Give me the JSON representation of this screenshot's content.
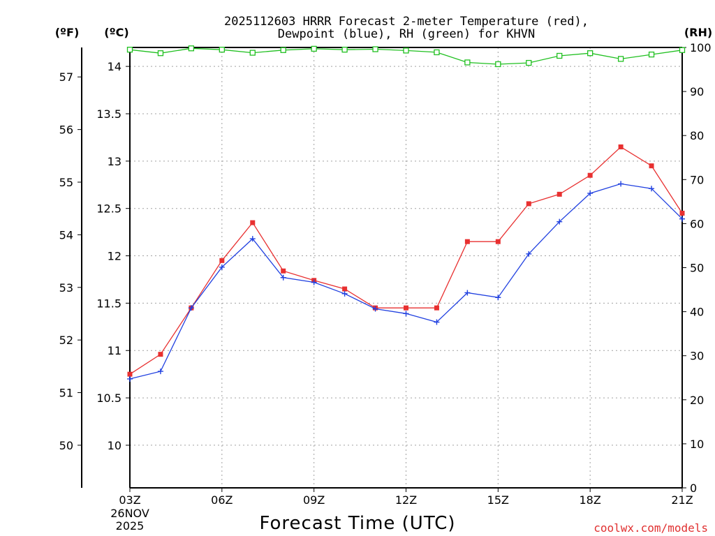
{
  "chart_data": {
    "type": "line",
    "title_line1": "2025112603 HRRR Forecast 2-meter Temperature (red),",
    "title_line2": "Dewpoint (blue), RH (green) for KHVN",
    "xlabel": "Forecast Time (UTC)",
    "credit": "coolwx.com/models",
    "unit_left_f": "(ºF)",
    "unit_left_c": "(ºC)",
    "unit_right": "(RH)",
    "date_label": [
      "26NOV",
      "2025"
    ],
    "x": [
      3,
      4,
      5,
      6,
      7,
      8,
      9,
      10,
      11,
      12,
      13,
      14,
      15,
      16,
      17,
      18,
      19,
      20,
      21
    ],
    "x_ticks": [
      {
        "x": 3,
        "label": "03Z"
      },
      {
        "x": 6,
        "label": "06Z"
      },
      {
        "x": 9,
        "label": "09Z"
      },
      {
        "x": 12,
        "label": "12Z"
      },
      {
        "x": 15,
        "label": "15Z"
      },
      {
        "x": 18,
        "label": "18Z"
      },
      {
        "x": 21,
        "label": "21Z"
      }
    ],
    "xlim": [
      3,
      21
    ],
    "ylim_c": [
      9.55,
      14.2
    ],
    "yticks_c": [
      10,
      10.5,
      11,
      11.5,
      12,
      12.5,
      13,
      13.5,
      14
    ],
    "yticks_c_labels": [
      "10",
      "10.5",
      "11",
      "11.5",
      "12",
      "12.5",
      "13",
      "13.5",
      "14"
    ],
    "yticks_f": [
      50,
      51,
      52,
      53,
      54,
      55,
      56,
      57
    ],
    "yticks_f_labels": [
      "50",
      "51",
      "52",
      "53",
      "54",
      "55",
      "56",
      "57"
    ],
    "ylim_rh": [
      0,
      100
    ],
    "yticks_rh": [
      0,
      10,
      20,
      30,
      40,
      50,
      60,
      70,
      80,
      90,
      100
    ],
    "yticks_rh_labels": [
      "0",
      "10",
      "20",
      "30",
      "40",
      "50",
      "60",
      "70",
      "80",
      "90",
      "100"
    ],
    "series": [
      {
        "name": "Temperature",
        "axis": "c",
        "color": "#e83030",
        "marker": "square",
        "values": [
          10.75,
          10.96,
          11.45,
          11.95,
          12.35,
          11.84,
          11.74,
          11.65,
          11.45,
          11.45,
          11.45,
          12.15,
          12.15,
          12.55,
          12.65,
          12.85,
          13.15,
          12.95,
          12.45
        ]
      },
      {
        "name": "Dewpoint",
        "axis": "c",
        "color": "#2040e0",
        "marker": "plus",
        "values": [
          10.7,
          10.78,
          11.45,
          11.88,
          12.18,
          11.77,
          11.72,
          11.6,
          11.44,
          11.39,
          11.3,
          11.61,
          11.56,
          12.02,
          12.36,
          12.66,
          12.76,
          12.71,
          12.39
        ]
      },
      {
        "name": "RH",
        "axis": "rh",
        "color": "#20c020",
        "marker": "open-square",
        "values": [
          99.5,
          98.7,
          99.8,
          99.5,
          98.8,
          99.4,
          99.7,
          99.5,
          99.6,
          99.3,
          98.9,
          96.6,
          96.2,
          96.5,
          98.1,
          98.7,
          97.4,
          98.4,
          99.4
        ]
      }
    ]
  }
}
